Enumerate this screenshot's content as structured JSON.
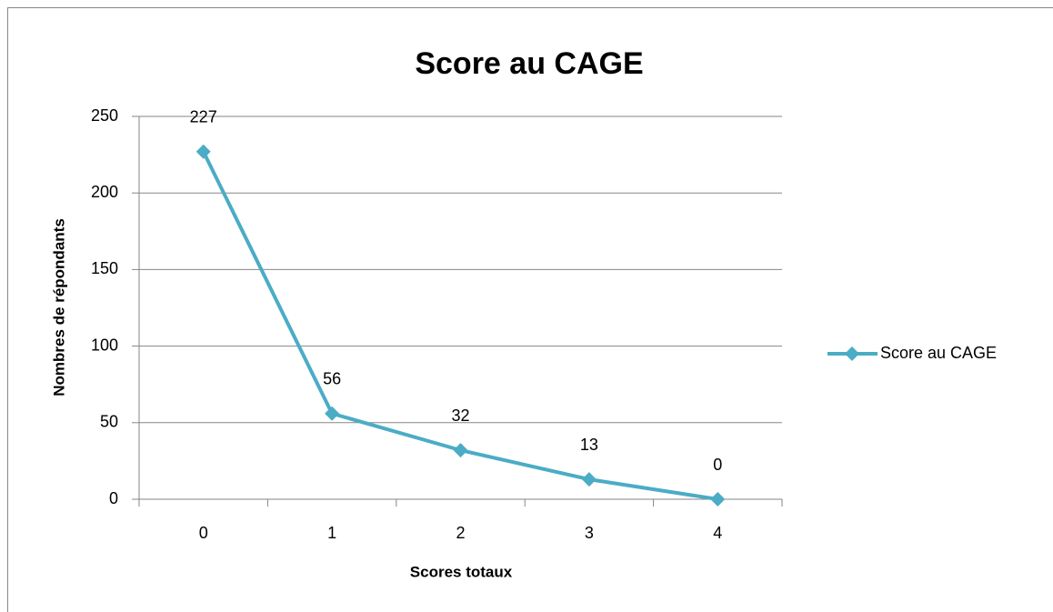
{
  "chart_data": {
    "type": "line",
    "title": "Score au CAGE",
    "x_label": "Scores totaux",
    "y_label": "Nombres de répondants",
    "categories": [
      "0",
      "1",
      "2",
      "3",
      "4"
    ],
    "series": [
      {
        "name": "Score au CAGE",
        "color": "#4bacc6",
        "values": [
          227,
          56,
          32,
          13,
          0
        ]
      }
    ],
    "ylim": [
      0,
      250
    ],
    "yticks": [
      0,
      50,
      100,
      150,
      200,
      250
    ],
    "grid": true,
    "legend": "right",
    "data_labels": true
  }
}
